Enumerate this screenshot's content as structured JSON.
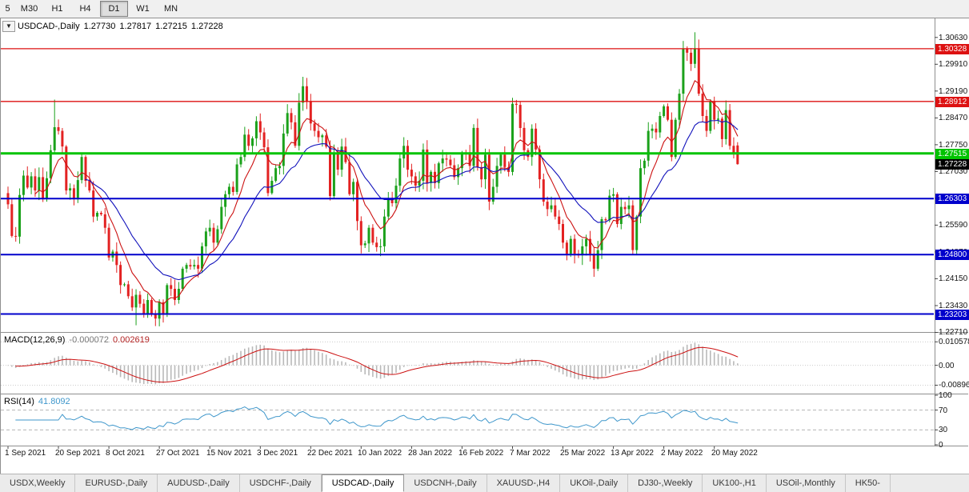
{
  "toolbar": {
    "periods": [
      {
        "label": "5",
        "active": false
      },
      {
        "label": "M30",
        "active": false
      },
      {
        "label": "H1",
        "active": false
      },
      {
        "label": "H4",
        "active": false
      },
      {
        "label": "D1",
        "active": true
      },
      {
        "label": "W1",
        "active": false
      },
      {
        "label": "MN",
        "active": false
      }
    ]
  },
  "chart": {
    "collapse_icon": "▼",
    "title": {
      "symbol": "USDCAD-,Daily",
      "open": "1.27730",
      "high": "1.27817",
      "low": "1.27215",
      "close": "1.27228"
    },
    "price_axis_ticks": [
      "1.30630",
      "1.29910",
      "1.29190",
      "1.28470",
      "1.27750",
      "1.27030",
      "1.26310",
      "1.25590",
      "1.24870",
      "1.24150",
      "1.23430",
      "1.22710"
    ],
    "level_lines": [
      {
        "label": "1.30328",
        "price": 1.30328,
        "color": "#dd1111",
        "width": 1.3
      },
      {
        "label": "1.28912",
        "price": 1.28912,
        "color": "#dd1111",
        "width": 1.3
      },
      {
        "label": "1.27515",
        "price": 1.27515,
        "color": "#00c300",
        "width": 3
      },
      {
        "label": "1.26303",
        "price": 1.26303,
        "color": "#0000cc",
        "width": 2
      },
      {
        "label": "1.24800",
        "price": 1.248,
        "color": "#0000cc",
        "width": 2
      },
      {
        "label": "1.23203",
        "price": 1.23203,
        "color": "#0000cc",
        "width": 2
      }
    ],
    "current_price_badge": {
      "label": "1.27228",
      "price": 1.27228,
      "bg": "#000000"
    },
    "date_labels": [
      {
        "text": "1 Sep 2021",
        "index": 0
      },
      {
        "text": "20 Sep 2021",
        "index": 13
      },
      {
        "text": "8 Oct 2021",
        "index": 26
      },
      {
        "text": "27 Oct 2021",
        "index": 39
      },
      {
        "text": "15 Nov 2021",
        "index": 52
      },
      {
        "text": "3 Dec 2021",
        "index": 65
      },
      {
        "text": "22 Dec 2021",
        "index": 78
      },
      {
        "text": "10 Jan 2022",
        "index": 91
      },
      {
        "text": "28 Jan 2022",
        "index": 104
      },
      {
        "text": "16 Feb 2022",
        "index": 117
      },
      {
        "text": "7 Mar 2022",
        "index": 130
      },
      {
        "text": "25 Mar 2022",
        "index": 143
      },
      {
        "text": "13 Apr 2022",
        "index": 156
      },
      {
        "text": "2 May 2022",
        "index": 169
      },
      {
        "text": "20 May 2022",
        "index": 182
      }
    ]
  },
  "macd_panel": {
    "title": "MACD(12,26,9)",
    "value_main": "-0.000072",
    "value_signal": "0.002619",
    "ticks": [
      {
        "label": "0.010578",
        "value": 0.010578
      },
      {
        "label": "0.00",
        "value": 0
      },
      {
        "label": "-0.00896",
        "value": -0.00896
      }
    ]
  },
  "rsi_panel": {
    "title": "RSI(14)",
    "value": "41.8092",
    "ticks": [
      {
        "label": "100",
        "value": 100
      },
      {
        "label": "70",
        "value": 70
      },
      {
        "label": "30",
        "value": 30
      },
      {
        "label": "0",
        "value": 0
      }
    ],
    "guide_levels": [
      70,
      30
    ]
  },
  "tabs": [
    {
      "label": "USDX,Weekly",
      "active": false
    },
    {
      "label": "EURUSD-,Daily",
      "active": false
    },
    {
      "label": "AUDUSD-,Daily",
      "active": false
    },
    {
      "label": "USDCHF-,Daily",
      "active": false
    },
    {
      "label": "USDCAD-,Daily",
      "active": true
    },
    {
      "label": "USDCNH-,Daily",
      "active": false
    },
    {
      "label": "XAUUSD-,H4",
      "active": false
    },
    {
      "label": "UKOil-,Daily",
      "active": false
    },
    {
      "label": "DJ30-,Weekly",
      "active": false
    },
    {
      "label": "UK100-,H1",
      "active": false
    },
    {
      "label": "USOil-,Monthly",
      "active": false
    },
    {
      "label": "HK50-",
      "active": false
    }
  ],
  "chart_data": {
    "type": "candlestick",
    "symbol": "USDCAD-",
    "timeframe": "Daily",
    "title": "USDCAD-,Daily",
    "ylim": [
      1.2272,
      1.3112
    ],
    "closes": [
      1.2615,
      1.253,
      1.2528,
      1.264,
      1.2692,
      1.266,
      1.269,
      1.2652,
      1.2688,
      1.2632,
      1.2685,
      1.276,
      1.2822,
      1.2812,
      1.277,
      1.2652,
      1.2658,
      1.2632,
      1.268,
      1.2742,
      1.2678,
      1.2652,
      1.2582,
      1.2592,
      1.2588,
      1.2552,
      1.2472,
      1.2488,
      1.2452,
      1.2398,
      1.24,
      1.2368,
      1.2338,
      1.2372,
      1.2348,
      1.2322,
      1.2358,
      1.2322,
      1.2308,
      1.2352,
      1.2322,
      1.2398,
      1.2388,
      1.2358,
      1.2388,
      1.2442,
      1.2452,
      1.2448,
      1.2452,
      1.2442,
      1.2502,
      1.2542,
      1.2552,
      1.2512,
      1.2548,
      1.2608,
      1.2642,
      1.2662,
      1.2648,
      1.2722,
      1.2742,
      1.2802,
      1.2772,
      1.2792,
      1.2838,
      1.2808,
      1.2768,
      1.2645,
      1.2678,
      1.2712,
      1.2718,
      1.2805,
      1.286,
      1.2835,
      1.2772,
      1.2888,
      1.2932,
      1.289,
      1.2832,
      1.2812,
      1.2795,
      1.28,
      1.277,
      1.2637,
      1.2754,
      1.2708,
      1.277,
      1.2728,
      1.2642,
      1.2675,
      1.257,
      1.2505,
      1.251,
      1.2552,
      1.2512,
      1.25,
      1.2502,
      1.2582,
      1.263,
      1.2618,
      1.2665,
      1.2738,
      1.2772,
      1.2708,
      1.269,
      1.2665,
      1.2678,
      1.2762,
      1.2672,
      1.2702,
      1.2672,
      1.2725,
      1.2738,
      1.2735,
      1.272,
      1.2688,
      1.2712,
      1.2752,
      1.275,
      1.2718,
      1.282,
      1.2715,
      1.2682,
      1.2748,
      1.2622,
      1.2662,
      1.2718,
      1.2748,
      1.2715,
      1.2702,
      1.2885,
      1.2882,
      1.282,
      1.276,
      1.2742,
      1.2818,
      1.2762,
      1.2682,
      1.2622,
      1.2602,
      1.2612,
      1.2582,
      1.2562,
      1.2512,
      1.2482,
      1.2522,
      1.2482,
      1.2478,
      1.2502,
      1.2522,
      1.2482,
      1.2442,
      1.2492,
      1.2575,
      1.2572,
      1.2638,
      1.2642,
      1.2562,
      1.2608,
      1.2602,
      1.2612,
      1.2492,
      1.2582,
      1.2712,
      1.2732,
      1.2812,
      1.2818,
      1.2808,
      1.2852,
      1.2878,
      1.2842,
      1.2742,
      1.2842,
      1.2912,
      1.3032,
      1.3022,
      1.2992,
      1.3032,
      1.2912,
      1.2852,
      1.2812,
      1.2892,
      1.2842,
      1.2845,
      1.279,
      1.2868,
      1.2772,
      1.2752,
      1.27228
    ],
    "wick_overrides": {
      "12": {
        "h": 1.2896
      },
      "33": {
        "l": 1.229
      },
      "38": {
        "l": 1.2288
      },
      "130": {
        "h": 1.2901
      },
      "177": {
        "h": 1.3077
      },
      "188": {
        "o": 1.2773,
        "h": 1.27817,
        "l": 1.27215,
        "c": 1.27228
      }
    },
    "colors": {
      "up": "#1ba11b",
      "down": "#e32222",
      "ma_fast": "#cc1111",
      "ma_slow": "#1111bb",
      "macd_hist": "#b9b9b9",
      "macd_signal": "#cc1111",
      "rsi": "#3f97cb"
    }
  }
}
